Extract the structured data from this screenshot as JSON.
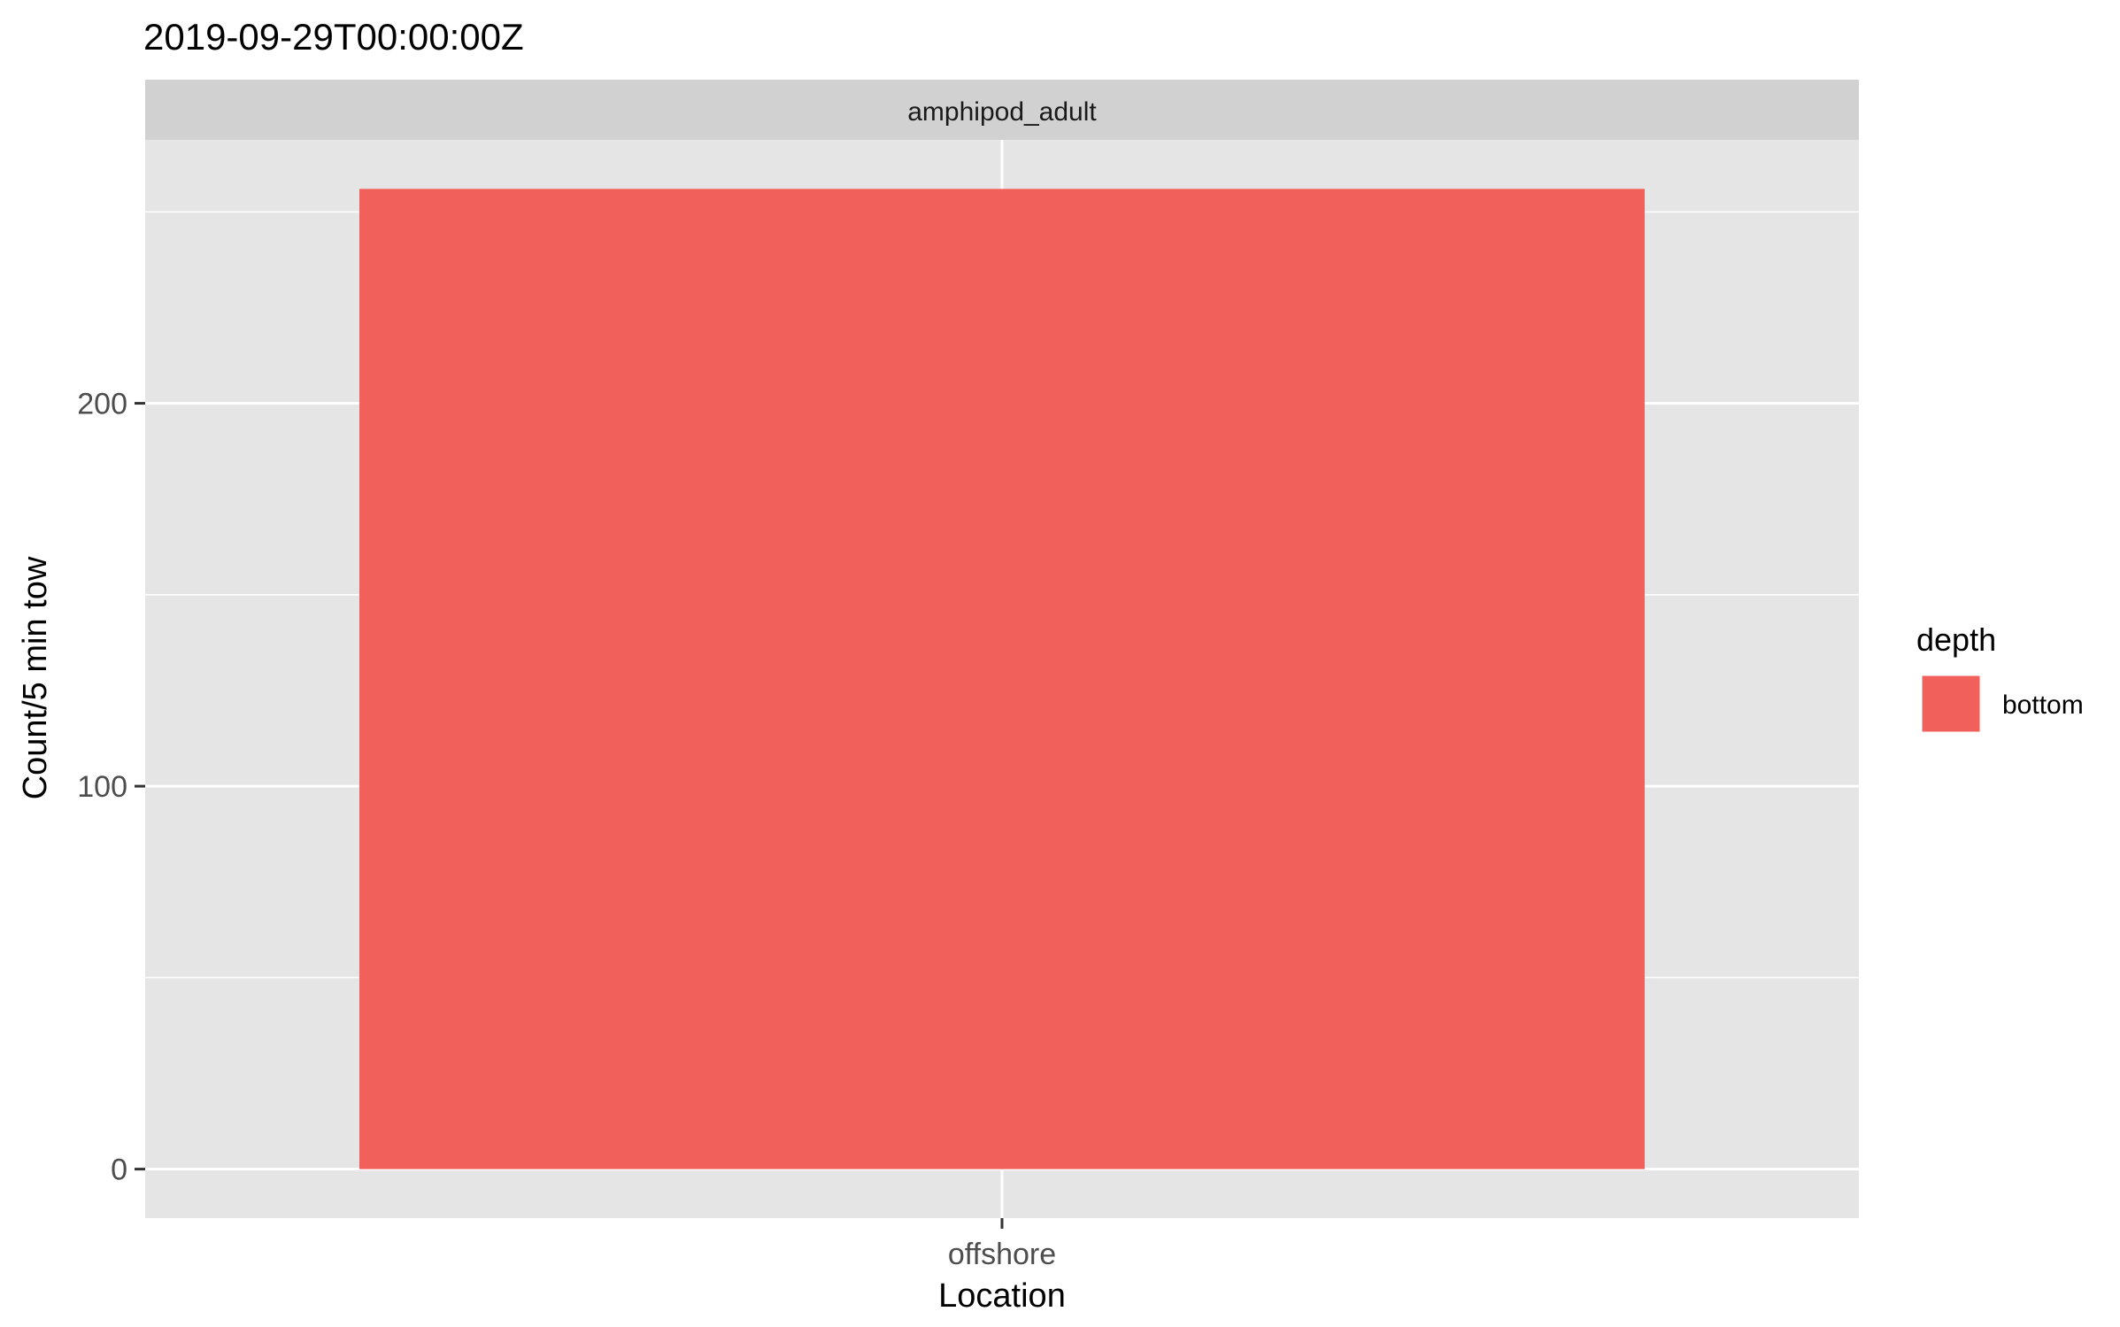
{
  "chart_data": {
    "type": "bar",
    "title": "2019-09-29T00:00:00Z",
    "facet": "amphipod_adult",
    "categories": [
      "offshore"
    ],
    "series": [
      {
        "name": "bottom",
        "values": [
          256
        ],
        "color": "#F2605C"
      }
    ],
    "xlabel": "Location",
    "ylabel": "Count/5 min tow",
    "y_ticks": [
      0,
      100,
      200
    ],
    "ylim": [
      -12.8,
      268.8
    ],
    "grid": true,
    "panel_background": "#E5E5E5",
    "strip_background": "#D1D1D1",
    "legend": {
      "title": "depth",
      "position": "right"
    }
  }
}
